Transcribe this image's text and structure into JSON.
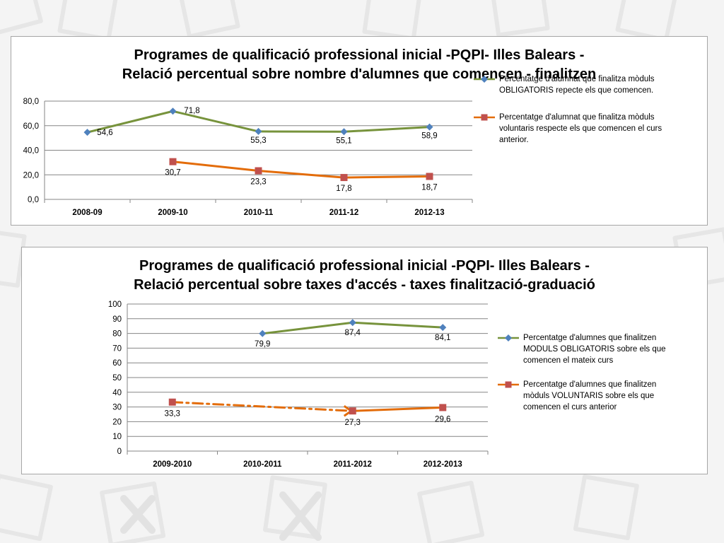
{
  "colors": {
    "green": "#77933c",
    "orange": "#e36c0a",
    "blue_marker": "#4f81bd",
    "red_marker": "#c0504d",
    "grid": "#868686"
  },
  "chart_data": [
    {
      "type": "line",
      "title_lines": [
        "Programes de qualificació professional inicial -PQPI- Illes Balears -",
        "Relació percentual sobre nombre d'alumnes que comencen - finalitzen"
      ],
      "categories": [
        "2008-09",
        "2009-10",
        "2010-11",
        "2011-12",
        "2012-13"
      ],
      "ylim": [
        0,
        80
      ],
      "yticks": [
        "0,0",
        "20,0",
        "40,0",
        "60,0",
        "80,0"
      ],
      "ytick_values": [
        0,
        20,
        40,
        60,
        80
      ],
      "grid": true,
      "legend_position": "right",
      "series": [
        {
          "name": "Percentatge d'alumnat que finalitza mòduls\nOBLIGATORIS repecte els que comencen.",
          "values": [
            54.6,
            71.8,
            55.3,
            55.1,
            58.9
          ],
          "labels": [
            "54,6",
            "71,8",
            "55,3",
            "55,1",
            "58,9"
          ],
          "line_color": "#77933c",
          "marker": "diamond",
          "marker_color": "#4f81bd"
        },
        {
          "name": "Percentatge d'alumnat que finalitza mòduls\nvoluntaris respecte els que comencen el curs\nanterior.",
          "values": [
            null,
            30.7,
            23.3,
            17.8,
            18.7
          ],
          "labels": [
            null,
            "30,7",
            "23,3",
            "17,8",
            "18,7"
          ],
          "line_color": "#e36c0a",
          "marker": "square",
          "marker_color": "#c0504d"
        }
      ]
    },
    {
      "type": "line",
      "title_lines": [
        "Programes de qualificació professional inicial -PQPI- Illes Balears -",
        "Relació percentual sobre taxes d'accés - taxes finalització-graduació"
      ],
      "categories": [
        "2009-2010",
        "2010-2011",
        "2011-2012",
        "2012-2013"
      ],
      "ylim": [
        0,
        100
      ],
      "yticks": [
        "0",
        "10",
        "20",
        "30",
        "40",
        "50",
        "60",
        "70",
        "80",
        "90",
        "100"
      ],
      "ytick_values": [
        0,
        10,
        20,
        30,
        40,
        50,
        60,
        70,
        80,
        90,
        100
      ],
      "grid": true,
      "legend_position": "right",
      "series": [
        {
          "name": "Percentatge d'alumnes que finalitzen\nMODULS OBLIGATORIS sobre els que\ncomencen el mateix curs",
          "values": [
            null,
            79.9,
            87.4,
            84.1
          ],
          "labels": [
            null,
            "79,9",
            "87,4",
            "84,1"
          ],
          "line_color": "#77933c",
          "marker": "diamond",
          "marker_color": "#4f81bd"
        },
        {
          "name": "Percentatge d'alumnes que finalitzen\nmòduls VOLUNTARIS sobre els que\ncomencen el curs anterior",
          "values": [
            33.3,
            null,
            27.3,
            29.6
          ],
          "labels": [
            "33,3",
            null,
            "27,3",
            "29,6"
          ],
          "line_color": "#e36c0a",
          "marker": "square",
          "marker_color": "#c0504d"
        }
      ]
    }
  ]
}
